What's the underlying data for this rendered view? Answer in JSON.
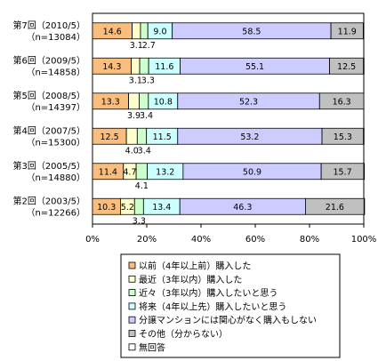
{
  "chart_data": {
    "type": "bar",
    "stacked": true,
    "orientation": "horizontal",
    "unit": "%",
    "categories": [
      [
        "第7回（2010/5）",
        "（n=13084）"
      ],
      [
        "第6回（2009/5）",
        "（n=14858）"
      ],
      [
        "第5回（2008/5）",
        "（n=14397）"
      ],
      [
        "第4回（2007/5）",
        "（n=15300）"
      ],
      [
        "第3回（2005/5）",
        "（n=14880）"
      ],
      [
        "第2回（2003/5）",
        "（n=12266）"
      ]
    ],
    "series": [
      {
        "name": "以前（4年以上前）購入した",
        "color": "#f9be7e",
        "values": [
          14.6,
          14.3,
          13.3,
          12.5,
          11.4,
          10.3
        ],
        "labels": [
          "14.6",
          "14.3",
          "13.3",
          "12.5",
          "11.4",
          "10.3"
        ]
      },
      {
        "name": "最近（3年以内）購入した",
        "color": "#ffffcc",
        "values": [
          3.1,
          3.1,
          3.9,
          4.0,
          4.7,
          5.2
        ],
        "labels": [
          "3.1",
          "3.1",
          "3.9",
          "4.0",
          "4.7",
          "5.2"
        ]
      },
      {
        "name": "近々（3年以内）購入したいと思う",
        "color": "#ccffcc",
        "values": [
          2.7,
          3.3,
          3.4,
          3.4,
          4.1,
          3.3
        ],
        "labels": [
          "2.7",
          "3.3",
          "3.4",
          "3.4",
          "4.1",
          "3.3"
        ]
      },
      {
        "name": "将来（4年以上先）購入したいと思う",
        "color": "#ccffff",
        "values": [
          9.0,
          11.6,
          10.8,
          11.5,
          13.2,
          13.4
        ],
        "labels": [
          "9.0",
          "11.6",
          "10.8",
          "11.5",
          "13.2",
          "13.4"
        ]
      },
      {
        "name": "分譲マンションには関心がなく購入もしない",
        "color": "#ccccff",
        "values": [
          58.5,
          55.1,
          52.3,
          53.2,
          50.9,
          46.3
        ],
        "labels": [
          "58.5",
          "55.1",
          "52.3",
          "53.2",
          "50.9",
          "46.3"
        ]
      },
      {
        "name": "その他（分からない）",
        "color": "#c0c0c0",
        "values": [
          11.9,
          12.5,
          16.3,
          15.3,
          15.7,
          21.6
        ],
        "labels": [
          "11.9",
          "12.5",
          "16.3",
          "15.3",
          "15.7",
          "21.6"
        ]
      },
      {
        "name": "無回答",
        "color": "#ffffff",
        "values": [
          0.2,
          0.1,
          0.0,
          0.1,
          0.2,
          0.1
        ],
        "labels": [
          "",
          "",
          "",
          "",
          "",
          ""
        ]
      }
    ],
    "xlim": [
      0,
      100
    ],
    "xticks": [
      "0%",
      "20%",
      "40%",
      "60%",
      "80%",
      "100%"
    ],
    "legend_position": "bottom"
  }
}
